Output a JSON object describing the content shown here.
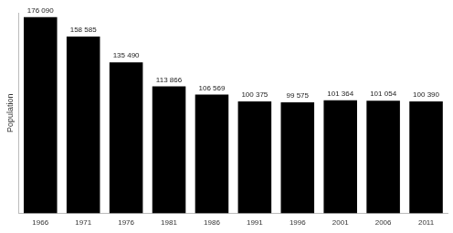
{
  "chart_data": {
    "type": "bar",
    "y_label": "Population",
    "categories": [
      "1966",
      "1971",
      "1976",
      "1981",
      "1986",
      "1991",
      "1996",
      "2001",
      "2006",
      "2011"
    ],
    "values": [
      176090,
      158585,
      135490,
      113866,
      106569,
      100375,
      99575,
      101364,
      101054,
      100390
    ],
    "value_labels": [
      "176 090",
      "158 585",
      "135 490",
      "113 866",
      "106 569",
      "100 375",
      "99 575",
      "101 364",
      "101 054",
      "100 390"
    ],
    "color": "#000000",
    "ylim": [
      0,
      180000
    ],
    "grid": false,
    "data_labels": true,
    "tick_labels": "x"
  }
}
